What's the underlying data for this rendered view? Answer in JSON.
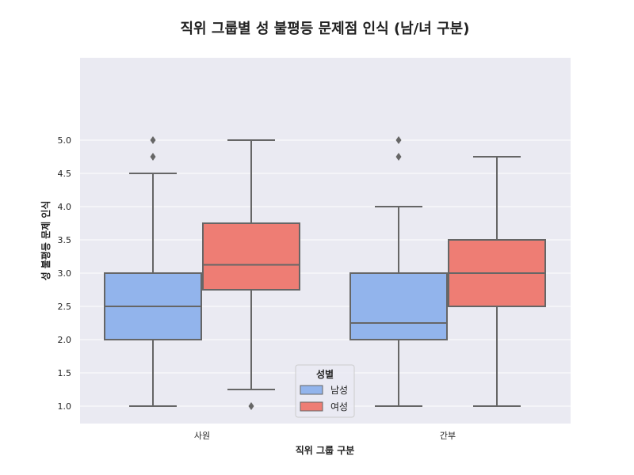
{
  "chart_data": {
    "type": "box",
    "title": "직위 그룹별 성 불평등 문제점 인식 (남/녀 구분)",
    "xlabel": "직위 그룹 구분",
    "ylabel": "성 불평등 문제 인식",
    "categories": [
      "사원",
      "간부"
    ],
    "y_ticks": [
      "1.0",
      "1.5",
      "2.0",
      "2.5",
      "3.0",
      "3.5",
      "4.0",
      "4.5",
      "5.0"
    ],
    "ylim": [
      0.8,
      5.2
    ],
    "grid": true,
    "legend": {
      "title": "성별",
      "placement": "lower-center"
    },
    "series": [
      {
        "name": "남성",
        "color": "#92b4ec",
        "boxes": [
          {
            "whisker_low": 1.0,
            "q1": 2.0,
            "median": 2.5,
            "q3": 3.0,
            "whisker_high": 4.5,
            "outliers": [
              4.75,
              5.0
            ]
          },
          {
            "whisker_low": 1.0,
            "q1": 2.0,
            "median": 2.25,
            "q3": 3.0,
            "whisker_high": 4.0,
            "outliers": [
              4.75,
              5.0
            ]
          }
        ]
      },
      {
        "name": "여성",
        "color": "#ee7d74",
        "boxes": [
          {
            "whisker_low": 1.25,
            "q1": 2.75,
            "median": 3.125,
            "q3": 3.75,
            "whisker_high": 5.0,
            "outliers": [
              1.0
            ]
          },
          {
            "whisker_low": 1.0,
            "q1": 2.5,
            "median": 3.0,
            "q3": 3.5,
            "whisker_high": 4.75,
            "outliers": []
          }
        ]
      }
    ]
  }
}
